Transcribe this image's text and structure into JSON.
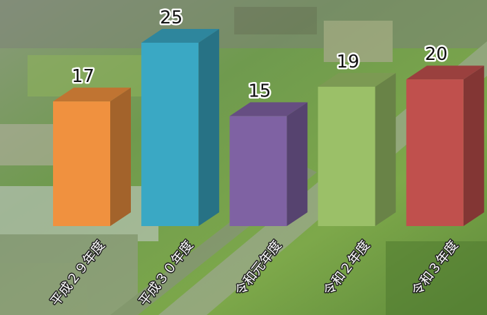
{
  "chart_data": {
    "type": "bar3d",
    "categories": [
      "平成２９年度",
      "平成３０年度",
      "令和元年度",
      "令和２年度",
      "令和３年度"
    ],
    "values": [
      17,
      25,
      15,
      19,
      20
    ],
    "colors": [
      "#f0913f",
      "#3aa8c4",
      "#7f62a3",
      "#9bc068",
      "#c0504d"
    ]
  }
}
